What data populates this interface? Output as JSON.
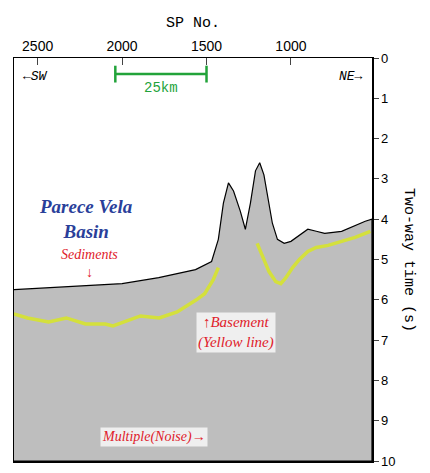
{
  "chart_data": {
    "type": "line",
    "xlabel": "SP No.",
    "ylabel": "Two-way time (s)",
    "xlim": [
      2640,
      520
    ],
    "ylim": [
      10,
      0
    ],
    "xticks": [
      2500,
      2000,
      1500,
      1000
    ],
    "yticks": [
      0,
      1,
      2,
      3,
      4,
      5,
      6,
      7,
      8,
      9,
      10
    ],
    "grid": false,
    "series": [
      {
        "type": "area",
        "color": "#000000",
        "x": [
          2641,
          2435,
          2217,
          2000,
          1783,
          1565,
          1470,
          1430,
          1400,
          1370,
          1340,
          1300,
          1270,
          1240,
          1210,
          1185,
          1160,
          1130,
          1110,
          1080,
          1040,
          1000,
          950,
          900,
          850,
          800,
          700,
          620,
          560,
          520
        ],
        "values": [
          5.75,
          5.7,
          5.65,
          5.6,
          5.45,
          5.25,
          5.05,
          4.5,
          3.6,
          3.1,
          3.3,
          3.8,
          4.25,
          3.6,
          2.8,
          2.6,
          2.9,
          3.6,
          4.1,
          4.5,
          4.6,
          4.55,
          4.4,
          4.25,
          4.3,
          4.35,
          4.3,
          4.15,
          4.05,
          4.0
        ]
      },
      {
        "type": "line",
        "color": "#d4e03c",
        "x": [
          2641,
          2560,
          2435,
          2330,
          2217,
          2100,
          2054,
          1950,
          1891,
          1780,
          1674,
          1560,
          1511,
          1460,
          1430,
          1300,
          1200,
          1170,
          1130,
          1090,
          1060,
          1030,
          990,
          950,
          900,
          850,
          780,
          700,
          620,
          560,
          530
        ],
        "values": [
          6.35,
          6.45,
          6.55,
          6.45,
          6.6,
          6.6,
          6.65,
          6.5,
          6.4,
          6.45,
          6.3,
          6.0,
          5.85,
          5.5,
          5.2,
          null,
          4.6,
          4.9,
          5.3,
          5.55,
          5.6,
          5.45,
          5.2,
          5.0,
          4.8,
          4.7,
          4.65,
          4.55,
          4.45,
          4.35,
          4.3
        ]
      }
    ],
    "scale_bar": {
      "label": "25km",
      "x": [
        2040,
        1500
      ],
      "y": 0.4,
      "color": "#22a33a"
    },
    "annotations": [
      {
        "lines": [
          "←SW"
        ],
        "color": "#000000"
      },
      {
        "lines": [
          "NE→"
        ],
        "color": "#000000"
      },
      {
        "lines": [
          "Parece Vela",
          "Basin"
        ],
        "color": "#2a3f9a"
      },
      {
        "lines": [
          "Sediments",
          "↓"
        ],
        "color": "#e0202a"
      },
      {
        "lines": [
          "↑Basement",
          "(Yellow line)"
        ],
        "color": "#e0202a"
      },
      {
        "lines": [
          "Multiple(Noise)→"
        ],
        "color": "#e0202a"
      }
    ]
  }
}
